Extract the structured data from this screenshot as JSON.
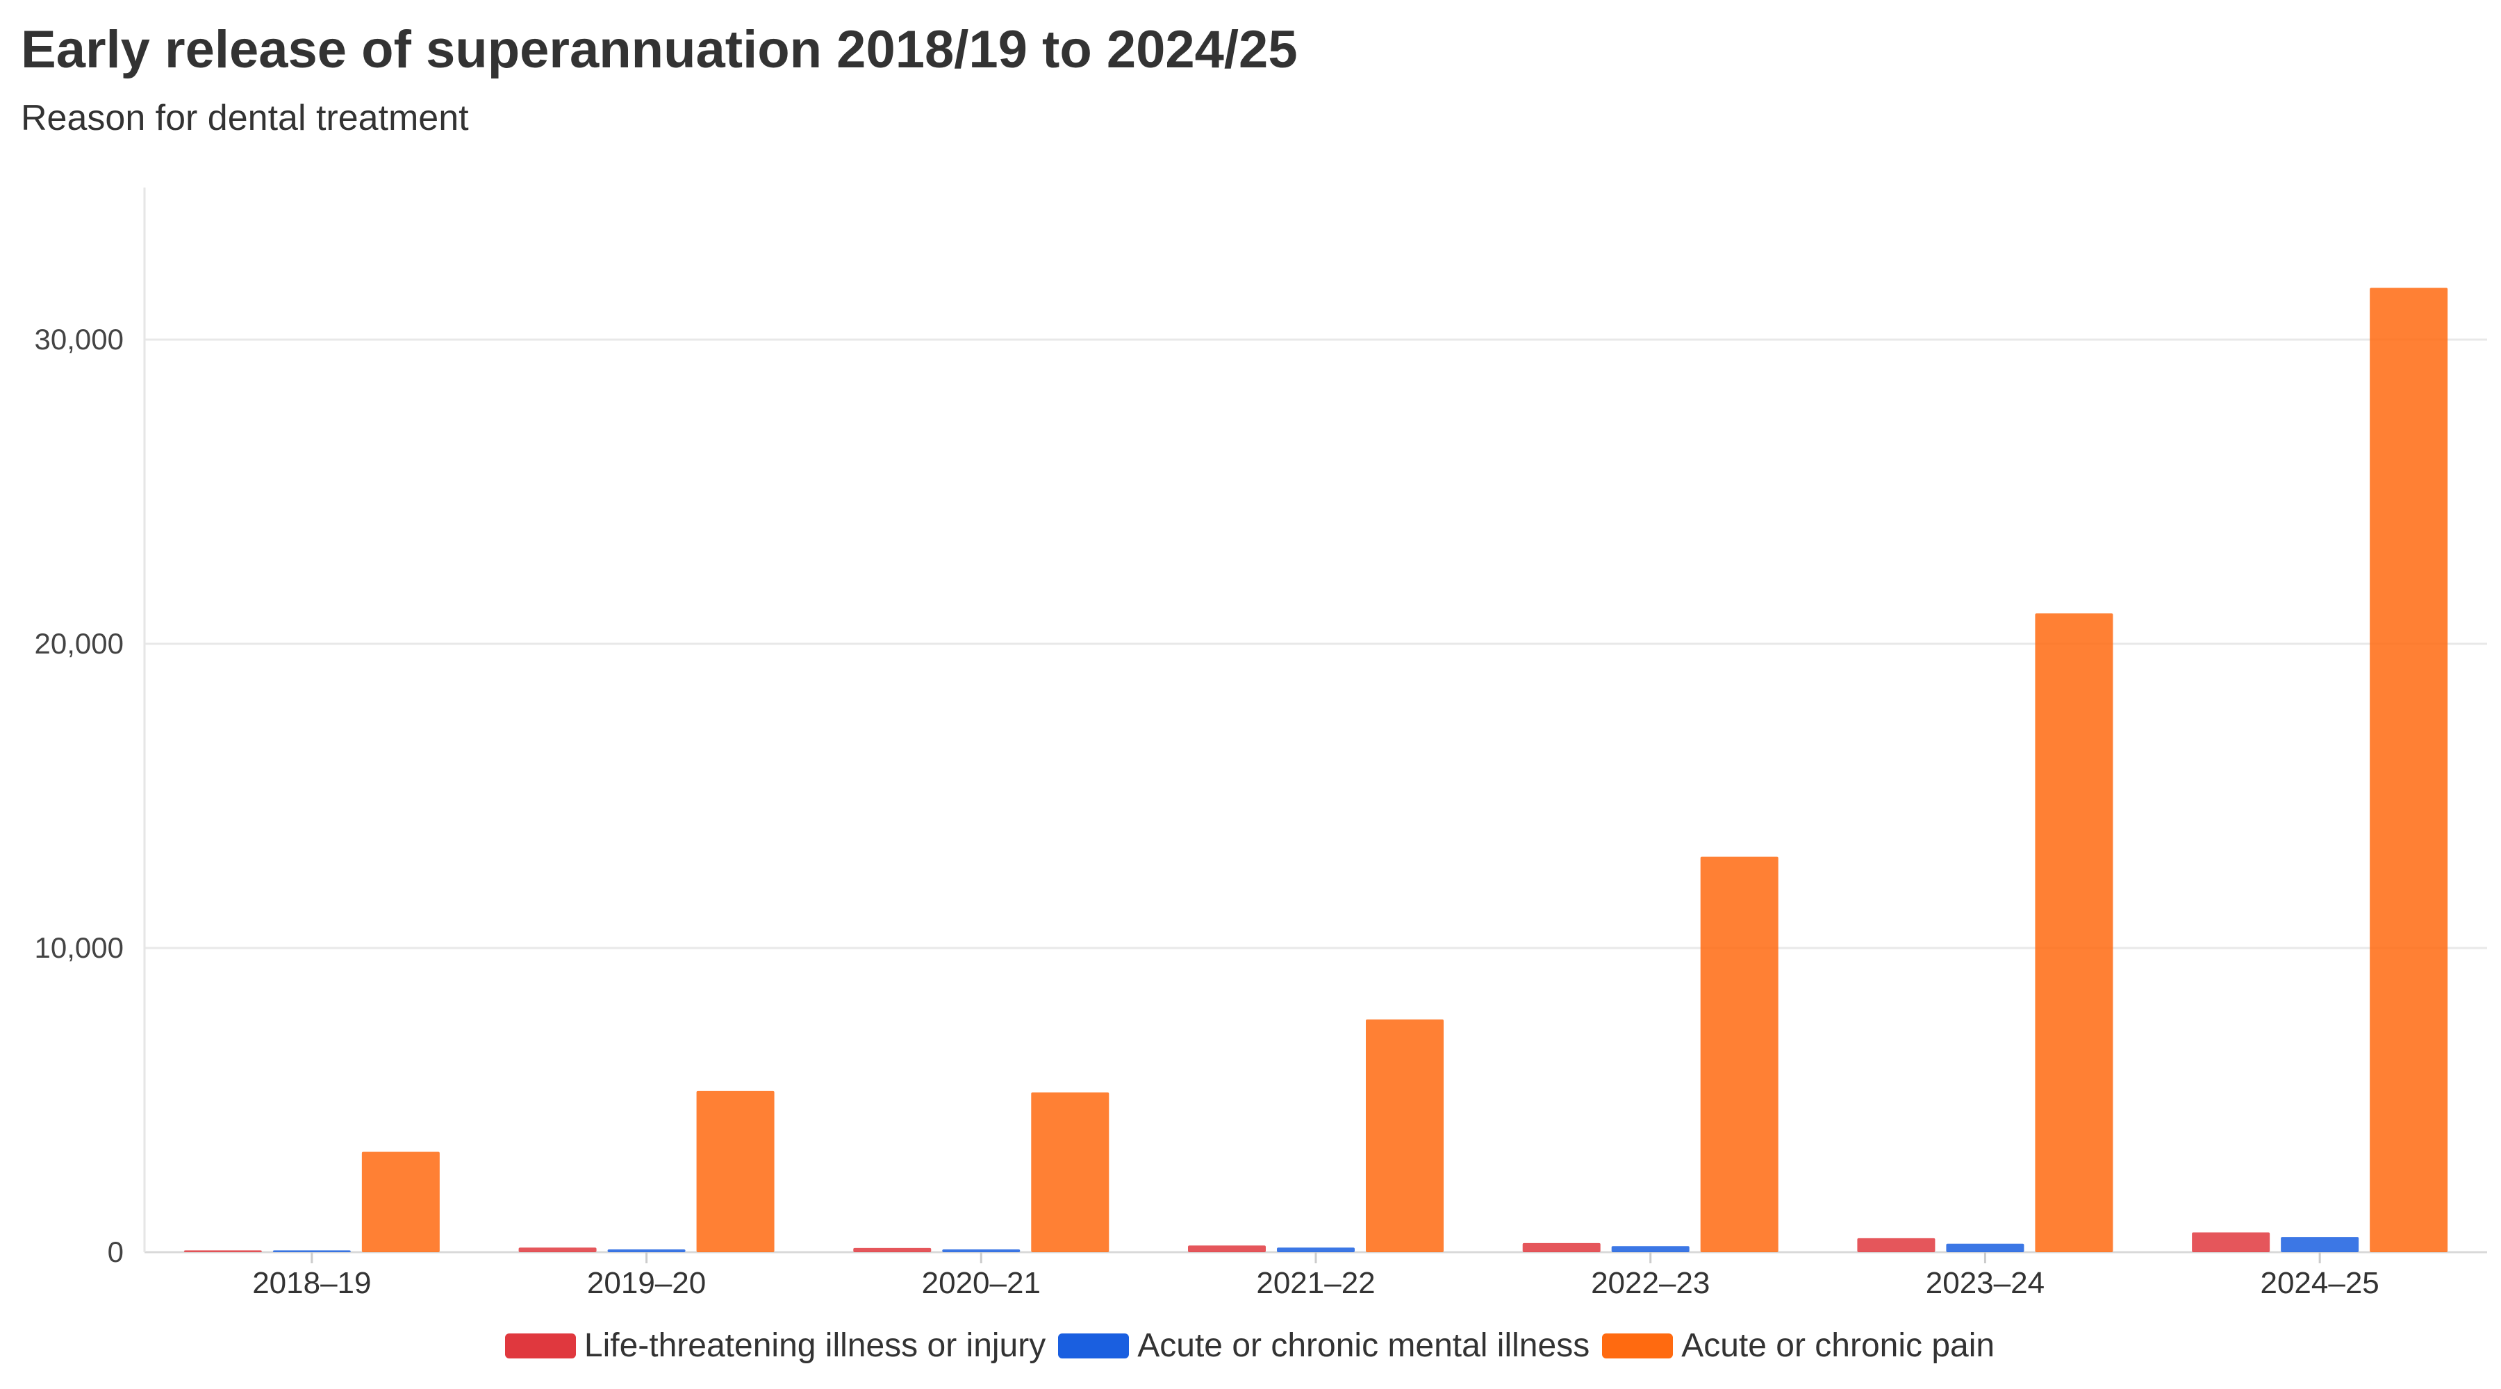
{
  "chart_data": {
    "type": "bar",
    "title": "Early release of superannuation 2018/19 to 2024/25",
    "subtitle": "Reason for dental treatment",
    "xlabel": "",
    "ylabel": "",
    "ylim": [
      0,
      35000
    ],
    "yticks": [
      0,
      10000,
      20000,
      30000
    ],
    "ytick_labels": [
      "0",
      "10,000",
      "20,000",
      "30,000"
    ],
    "grid": true,
    "legend_position": "bottom",
    "categories": [
      "2018–19",
      "2019–20",
      "2020–21",
      "2021–22",
      "2022–23",
      "2023–24",
      "2024–25"
    ],
    "series": [
      {
        "name": "Life-threatening illness or injury",
        "color": "#e0383e",
        "values": [
          60,
          150,
          140,
          220,
          300,
          460,
          650
        ]
      },
      {
        "name": "Acute or chronic mental illness",
        "color": "#1a5fe0",
        "values": [
          60,
          90,
          90,
          150,
          200,
          280,
          500
        ]
      },
      {
        "name": "Acute or chronic pain",
        "color": "#ff6a10",
        "values": [
          3300,
          5300,
          5250,
          7650,
          13000,
          21000,
          31700
        ]
      }
    ]
  }
}
